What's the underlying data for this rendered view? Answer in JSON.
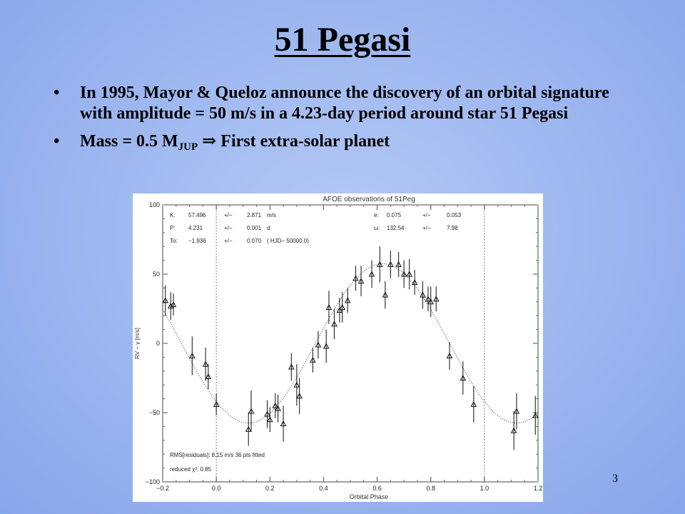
{
  "slide": {
    "title": "51 Pegasi",
    "bullets": [
      {
        "text": "In 1995, Mayor & Queloz announce the discovery of an orbital signature with amplitude = 50 m/s in a 4.23-day period around star 51 Pegasi"
      },
      {
        "before": "Mass = 0.5 M",
        "sub": "JUP",
        "symbol": "⇒",
        "after": "First extra-solar planet"
      }
    ],
    "bullet_char": "•",
    "page_number": "3"
  },
  "chart_data": {
    "type": "scatter",
    "title": "AFOE observations of 51Peg",
    "xlabel": "Orbital Phase",
    "ylabel": "RV − γ [m/s]",
    "xlim": [
      -0.2,
      1.2
    ],
    "ylim": [
      -100,
      100
    ],
    "x_ticks": [
      -0.2,
      0.0,
      0.2,
      0.4,
      0.6,
      0.8,
      1.0,
      1.2
    ],
    "y_ticks": [
      -100,
      -50,
      0,
      50,
      100
    ],
    "reference_lines_x": [
      0.0,
      1.0
    ],
    "annotations_top_left": [
      [
        "K:",
        "57.496",
        "+/−",
        "2.871",
        "m/s"
      ],
      [
        "P:",
        "4.231",
        "+/−",
        "0.001",
        "d"
      ],
      [
        "To:",
        "−1.936",
        "+/−",
        "0.070",
        "( HJD− 50000.0)"
      ]
    ],
    "annotations_top_right": [
      [
        "e:",
        "0.075",
        "+/−",
        "0.053"
      ],
      [
        "ω:",
        "132.54",
        "+/−",
        "7.98"
      ]
    ],
    "annotations_bottom_left": [
      "RMS[residuals]: 8.15 m/s   36 pts fitted",
      "reduced χ²: 0.85"
    ],
    "model_curve": {
      "amplitude": 57.5,
      "phase_of_max": 0.62,
      "style": "dotted"
    },
    "points": [
      {
        "x": -0.19,
        "y": 31,
        "err": 11
      },
      {
        "x": -0.17,
        "y": 27,
        "err": 10
      },
      {
        "x": -0.16,
        "y": 28,
        "err": 8
      },
      {
        "x": -0.09,
        "y": -9,
        "err": 14
      },
      {
        "x": -0.04,
        "y": -15,
        "err": 12
      },
      {
        "x": -0.03,
        "y": -24,
        "err": 9
      },
      {
        "x": 0.0,
        "y": -44,
        "err": 8
      },
      {
        "x": 0.12,
        "y": -62,
        "err": 12
      },
      {
        "x": 0.13,
        "y": -49,
        "err": 15
      },
      {
        "x": 0.19,
        "y": -51,
        "err": 10
      },
      {
        "x": 0.2,
        "y": -55,
        "err": 9
      },
      {
        "x": 0.22,
        "y": -45,
        "err": 9
      },
      {
        "x": 0.23,
        "y": -47,
        "err": 10
      },
      {
        "x": 0.25,
        "y": -58,
        "err": 13
      },
      {
        "x": 0.28,
        "y": -17,
        "err": 10
      },
      {
        "x": 0.3,
        "y": -30,
        "err": 15
      },
      {
        "x": 0.31,
        "y": -38,
        "err": 13
      },
      {
        "x": 0.36,
        "y": -12,
        "err": 9
      },
      {
        "x": 0.38,
        "y": -1,
        "err": 10
      },
      {
        "x": 0.41,
        "y": -2,
        "err": 12
      },
      {
        "x": 0.42,
        "y": 26,
        "err": 12
      },
      {
        "x": 0.44,
        "y": 14,
        "err": 11
      },
      {
        "x": 0.46,
        "y": 24,
        "err": 9
      },
      {
        "x": 0.47,
        "y": 26,
        "err": 11
      },
      {
        "x": 0.49,
        "y": 31,
        "err": 9
      },
      {
        "x": 0.52,
        "y": 47,
        "err": 9
      },
      {
        "x": 0.54,
        "y": 45,
        "err": 11
      },
      {
        "x": 0.58,
        "y": 50,
        "err": 10
      },
      {
        "x": 0.61,
        "y": 57,
        "err": 13
      },
      {
        "x": 0.63,
        "y": 35,
        "err": 10
      },
      {
        "x": 0.65,
        "y": 57,
        "err": 10
      },
      {
        "x": 0.68,
        "y": 57,
        "err": 9
      },
      {
        "x": 0.7,
        "y": 50,
        "err": 10
      },
      {
        "x": 0.72,
        "y": 50,
        "err": 11
      },
      {
        "x": 0.74,
        "y": 44,
        "err": 9
      },
      {
        "x": 0.77,
        "y": 35,
        "err": 10
      },
      {
        "x": 0.79,
        "y": 32,
        "err": 9
      },
      {
        "x": 0.8,
        "y": 30,
        "err": 11
      },
      {
        "x": 0.82,
        "y": 32,
        "err": 9
      },
      {
        "x": 0.87,
        "y": -9,
        "err": 10
      },
      {
        "x": 0.92,
        "y": -25,
        "err": 12
      },
      {
        "x": 0.96,
        "y": -44,
        "err": 13
      },
      {
        "x": 1.11,
        "y": -63,
        "err": 14
      },
      {
        "x": 1.12,
        "y": -49,
        "err": 13
      },
      {
        "x": 1.19,
        "y": -52,
        "err": 14
      }
    ]
  }
}
